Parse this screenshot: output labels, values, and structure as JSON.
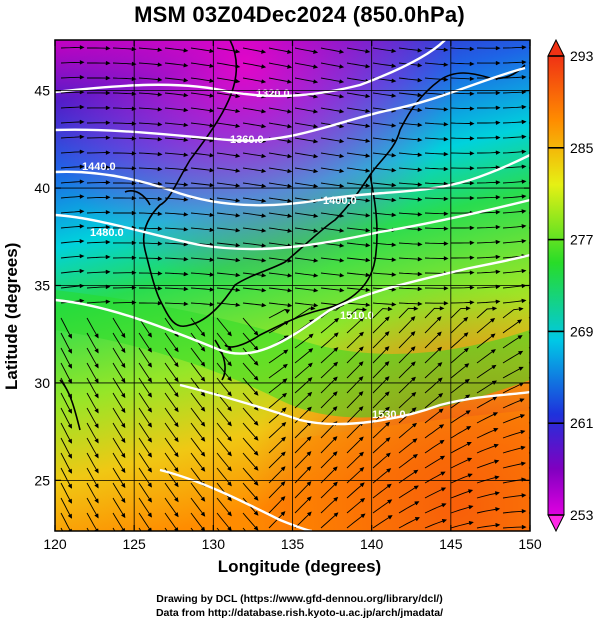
{
  "title": "MSM 03Z04Dec2024 (850.0hPa)",
  "xlabel": "Longitude (degrees)",
  "ylabel": "Latitude  (degrees)",
  "credits": [
    "Drawing by DCL (https://www.gfd-dennou.org/library/dcl/)",
    "Data from http://database.rish.kyoto-u.ac.jp/arch/jmadata/"
  ],
  "map": {
    "lon_range": [
      120,
      150
    ],
    "lat_range": [
      22.4,
      47.6
    ],
    "x_ticks": [
      "120",
      "125",
      "130",
      "135",
      "140",
      "145",
      "150"
    ],
    "y_ticks": [
      "25",
      "30",
      "35",
      "40",
      "45"
    ],
    "grid": true,
    "colors": {
      "purple": "#c000c0",
      "magenta": "#ff00c8",
      "blue": "#1e32dc",
      "cyan": "#00c8e6",
      "green": "#28dc28",
      "yellow": "#e6f014",
      "orange": "#ff8c00",
      "red": "#f03214"
    }
  },
  "colorbar": {
    "labels": [
      "293",
      "285",
      "277",
      "269",
      "261",
      "253"
    ],
    "min": 253,
    "max": 293
  },
  "contour_labels": [
    "1320.0",
    "1360.0",
    "1440.0",
    "1400.0",
    "1480.0",
    "1510.0",
    "1530.0"
  ]
}
